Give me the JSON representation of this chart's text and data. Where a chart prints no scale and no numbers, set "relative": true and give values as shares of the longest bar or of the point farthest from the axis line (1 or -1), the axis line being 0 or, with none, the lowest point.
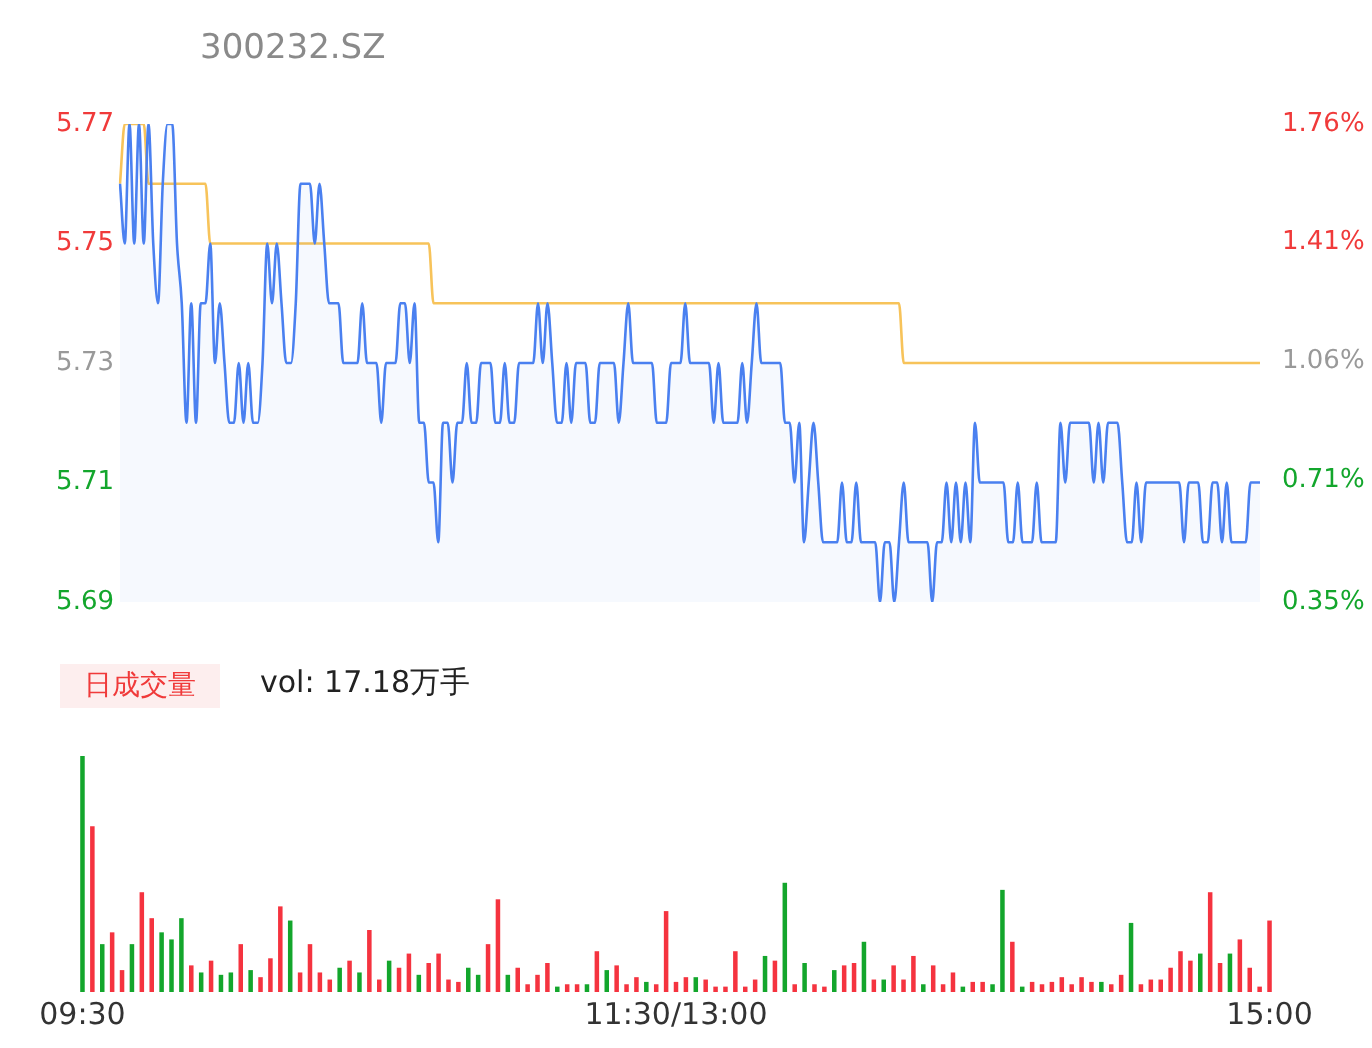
{
  "chart_data": [
    {
      "type": "line",
      "title": "300232.SZ",
      "categories": [
        null,
        null,
        null,
        null,
        null,
        null,
        null,
        null,
        null,
        null,
        null,
        null,
        null,
        null,
        null,
        null,
        null,
        null,
        null,
        null,
        null,
        null,
        null,
        null,
        null,
        null,
        null,
        null,
        null,
        null,
        null,
        null,
        null,
        null,
        null,
        null,
        null,
        null,
        null,
        null,
        null,
        null,
        null,
        null,
        null,
        null,
        null,
        null,
        null,
        null,
        null,
        null,
        null,
        null,
        null,
        null,
        null,
        null,
        null,
        null,
        null,
        null,
        null,
        null,
        null,
        null,
        null,
        null,
        null,
        null,
        null,
        null,
        null,
        null,
        null,
        null,
        null,
        null,
        null,
        null,
        null,
        null,
        null,
        null,
        null,
        null,
        null,
        null,
        null,
        null,
        null,
        null,
        null,
        null,
        null,
        null,
        null,
        null,
        null,
        null,
        null,
        null,
        null,
        null,
        null,
        null,
        null,
        null,
        null,
        null,
        null,
        null,
        null,
        null,
        null,
        null,
        null,
        null,
        null,
        null,
        null,
        null,
        null,
        null,
        null,
        null,
        null,
        null,
        null,
        null,
        null,
        null,
        null,
        null,
        null,
        null,
        null,
        null,
        null,
        null,
        null,
        null,
        null,
        null,
        null,
        null,
        null,
        null,
        null,
        null,
        null,
        null,
        null,
        null,
        null,
        null,
        null,
        null,
        null,
        null,
        null,
        null,
        null,
        null,
        null,
        null,
        null,
        null,
        null,
        null,
        null,
        null,
        null,
        null,
        null,
        null,
        null,
        null,
        null,
        null,
        null,
        null,
        null,
        null,
        null,
        null,
        null,
        null,
        null,
        null,
        null,
        null,
        null,
        null,
        null,
        null,
        null,
        null,
        null,
        null,
        null,
        null,
        null,
        null,
        null,
        null,
        null,
        null,
        null,
        null,
        null,
        null,
        null,
        null,
        null,
        null,
        null,
        null,
        null,
        null,
        null,
        null,
        null,
        null,
        null,
        null,
        null,
        null,
        null,
        null,
        null,
        null,
        null,
        null,
        null,
        null,
        null,
        null,
        null,
        null,
        null
      ],
      "ylim": [
        5.69,
        5.77
      ],
      "yticks": [
        5.69,
        5.71,
        5.73,
        5.75,
        5.77
      ],
      "y2lim": [
        0.35,
        1.76
      ],
      "y2ticks": [
        {
          "value": 0.35,
          "label": "0.35%"
        },
        {
          "value": 0.71,
          "label": "0.71%"
        },
        {
          "value": 1.06,
          "label": "1.06%"
        },
        {
          "value": 1.41,
          "label": "1.41%"
        },
        {
          "value": 1.76,
          "label": "1.76%"
        }
      ],
      "tick_labels": "y",
      "grid": false,
      "legend": false,
      "series": [
        {
          "type": "area",
          "color": "#4a80f0",
          "values": [
            5.76,
            5.75,
            5.77,
            5.75,
            5.77,
            5.75,
            5.77,
            5.75,
            5.74,
            5.76,
            5.77,
            5.77,
            5.75,
            5.74,
            5.72,
            5.74,
            5.72,
            5.74,
            5.74,
            5.75,
            5.73,
            5.74,
            5.73,
            5.72,
            5.72,
            5.73,
            5.72,
            5.73,
            5.72,
            5.72,
            5.73,
            5.75,
            5.74,
            5.75,
            5.74,
            5.73,
            5.73,
            5.74,
            5.76,
            5.76,
            5.76,
            5.75,
            5.76,
            5.75,
            5.74,
            5.74,
            5.74,
            5.73,
            5.73,
            5.73,
            5.73,
            5.74,
            5.73,
            5.73,
            5.73,
            5.72,
            5.73,
            5.73,
            5.73,
            5.74,
            5.74,
            5.73,
            5.74,
            5.72,
            5.72,
            5.71,
            5.71,
            5.7,
            5.72,
            5.72,
            5.71,
            5.72,
            5.72,
            5.73,
            5.72,
            5.72,
            5.73,
            5.73,
            5.73,
            5.72,
            5.72,
            5.73,
            5.72,
            5.72,
            5.73,
            5.73,
            5.73,
            5.73,
            5.74,
            5.73,
            5.74,
            5.73,
            5.72,
            5.72,
            5.73,
            5.72,
            5.73,
            5.73,
            5.73,
            5.72,
            5.72,
            5.73,
            5.73,
            5.73,
            5.73,
            5.72,
            5.73,
            5.74,
            5.73,
            5.73,
            5.73,
            5.73,
            5.73,
            5.72,
            5.72,
            5.72,
            5.73,
            5.73,
            5.73,
            5.74,
            5.73,
            5.73,
            5.73,
            5.73,
            5.73,
            5.72,
            5.73,
            5.72,
            5.72,
            5.72,
            5.72,
            5.73,
            5.72,
            5.73,
            5.74,
            5.73,
            5.73,
            5.73,
            5.73,
            5.73,
            5.72,
            5.72,
            5.71,
            5.72,
            5.7,
            5.71,
            5.72,
            5.71,
            5.7,
            5.7,
            5.7,
            5.7,
            5.71,
            5.7,
            5.7,
            5.71,
            5.7,
            5.7,
            5.7,
            5.7,
            5.69,
            5.7,
            5.7,
            5.69,
            5.7,
            5.71,
            5.7,
            5.7,
            5.7,
            5.7,
            5.7,
            5.69,
            5.7,
            5.7,
            5.71,
            5.7,
            5.71,
            5.7,
            5.71,
            5.7,
            5.72,
            5.71,
            5.71,
            5.71,
            5.71,
            5.71,
            5.71,
            5.7,
            5.7,
            5.71,
            5.7,
            5.7,
            5.7,
            5.71,
            5.7,
            5.7,
            5.7,
            5.7,
            5.72,
            5.71,
            5.72,
            5.72,
            5.72,
            5.72,
            5.72,
            5.71,
            5.72,
            5.71,
            5.72,
            5.72,
            5.72,
            5.71,
            5.7,
            5.7,
            5.71,
            5.7,
            5.71,
            5.71,
            5.71,
            5.71,
            5.71,
            5.71,
            5.71,
            5.71,
            5.7,
            5.71,
            5.71,
            5.71,
            5.7,
            5.7,
            5.71,
            5.71,
            5.7,
            5.71,
            5.7,
            5.7,
            5.7,
            5.7,
            5.71,
            5.71,
            5.71
          ]
        },
        {
          "type": "line",
          "color": "#f7c35a",
          "values": [
            5.76,
            5.77,
            5.77,
            5.77,
            5.77,
            5.77,
            5.76,
            5.76,
            5.76,
            5.76,
            5.76,
            5.76,
            5.76,
            5.76,
            5.76,
            5.76,
            5.76,
            5.76,
            5.76,
            5.75,
            5.75,
            5.75,
            5.75,
            5.75,
            5.75,
            5.75,
            5.75,
            5.75,
            5.75,
            5.75,
            5.75,
            5.75,
            5.75,
            5.75,
            5.75,
            5.75,
            5.75,
            5.75,
            5.75,
            5.75,
            5.75,
            5.75,
            5.75,
            5.75,
            5.75,
            5.75,
            5.75,
            5.75,
            5.75,
            5.75,
            5.75,
            5.75,
            5.75,
            5.75,
            5.75,
            5.75,
            5.75,
            5.75,
            5.75,
            5.75,
            5.75,
            5.75,
            5.75,
            5.75,
            5.75,
            5.75,
            5.74,
            5.74,
            5.74,
            5.74,
            5.74,
            5.74,
            5.74,
            5.74,
            5.74,
            5.74,
            5.74,
            5.74,
            5.74,
            5.74,
            5.74,
            5.74,
            5.74,
            5.74,
            5.74,
            5.74,
            5.74,
            5.74,
            5.74,
            5.74,
            5.74,
            5.74,
            5.74,
            5.74,
            5.74,
            5.74,
            5.74,
            5.74,
            5.74,
            5.74,
            5.74,
            5.74,
            5.74,
            5.74,
            5.74,
            5.74,
            5.74,
            5.74,
            5.74,
            5.74,
            5.74,
            5.74,
            5.74,
            5.74,
            5.74,
            5.74,
            5.74,
            5.74,
            5.74,
            5.74,
            5.74,
            5.74,
            5.74,
            5.74,
            5.74,
            5.74,
            5.74,
            5.74,
            5.74,
            5.74,
            5.74,
            5.74,
            5.74,
            5.74,
            5.74,
            5.74,
            5.74,
            5.74,
            5.74,
            5.74,
            5.74,
            5.74,
            5.74,
            5.74,
            5.74,
            5.74,
            5.74,
            5.74,
            5.74,
            5.74,
            5.74,
            5.74,
            5.74,
            5.74,
            5.74,
            5.74,
            5.74,
            5.74,
            5.74,
            5.74,
            5.74,
            5.74,
            5.74,
            5.74,
            5.74,
            5.73,
            5.73,
            5.73,
            5.73,
            5.73,
            5.73,
            5.73,
            5.73,
            5.73,
            5.73,
            5.73,
            5.73,
            5.73,
            5.73,
            5.73,
            5.73,
            5.73,
            5.73,
            5.73,
            5.73,
            5.73,
            5.73,
            5.73,
            5.73,
            5.73,
            5.73,
            5.73,
            5.73,
            5.73,
            5.73,
            5.73,
            5.73,
            5.73,
            5.73,
            5.73,
            5.73,
            5.73,
            5.73,
            5.73,
            5.73,
            5.73,
            5.73,
            5.73,
            5.73,
            5.73,
            5.73,
            5.73,
            5.73,
            5.73,
            5.73,
            5.73,
            5.73,
            5.73,
            5.73,
            5.73,
            5.73,
            5.73,
            5.73,
            5.73,
            5.73,
            5.73,
            5.73,
            5.73,
            5.73,
            5.73,
            5.73,
            5.73,
            5.73,
            5.73,
            5.73,
            5.73,
            5.73,
            5.73,
            5.73,
            5.73,
            5.73
          ]
        }
      ]
    },
    {
      "type": "bar",
      "relative": true,
      "annotations": [
        "日成交量",
        "vol: 17.18万手"
      ],
      "categories": [
        "09:30",
        null,
        null,
        null,
        null,
        null,
        null,
        null,
        null,
        null,
        null,
        null,
        null,
        null,
        null,
        null,
        null,
        null,
        null,
        null,
        null,
        null,
        null,
        null,
        null,
        null,
        null,
        null,
        null,
        null,
        null,
        null,
        null,
        null,
        null,
        null,
        null,
        null,
        null,
        null,
        null,
        null,
        null,
        null,
        null,
        null,
        null,
        null,
        null,
        null,
        null,
        null,
        null,
        null,
        null,
        null,
        null,
        null,
        null,
        null,
        null,
        null,
        null,
        null,
        null,
        null,
        null,
        null,
        null,
        null,
        null,
        null,
        null,
        null,
        null,
        null,
        null,
        null,
        null,
        null,
        null,
        null,
        null,
        null,
        null,
        null,
        null,
        null,
        null,
        null,
        null,
        null,
        null,
        null,
        null,
        null,
        null,
        null,
        null,
        null,
        null,
        null,
        null,
        null,
        null,
        null,
        null,
        null,
        null,
        null,
        null,
        null,
        null,
        null,
        null,
        null,
        null,
        null,
        null,
        null,
        "11:30/13:00",
        null,
        null,
        null,
        null,
        null,
        null,
        null,
        null,
        null,
        null,
        null,
        null,
        null,
        null,
        null,
        null,
        null,
        null,
        null,
        null,
        null,
        null,
        null,
        null,
        null,
        null,
        null,
        null,
        null,
        null,
        null,
        null,
        null,
        null,
        null,
        null,
        null,
        null,
        null,
        null,
        null,
        null,
        null,
        null,
        null,
        null,
        null,
        null,
        null,
        null,
        null,
        null,
        null,
        null,
        null,
        null,
        null,
        null,
        null,
        null,
        null,
        null,
        null,
        null,
        null,
        null,
        null,
        null,
        null,
        null,
        null,
        null,
        null,
        null,
        null,
        null,
        null,
        null,
        null,
        null,
        null,
        null,
        null,
        null,
        null,
        null,
        null,
        null,
        null,
        null,
        null,
        null,
        null,
        null,
        null,
        null,
        null,
        null,
        null,
        null,
        null,
        null,
        null,
        null,
        null,
        null,
        null,
        null,
        null,
        null,
        null,
        null,
        null,
        null,
        null,
        null,
        null,
        null,
        null,
        "15:00"
      ],
      "tick_labels": "x",
      "grid": false,
      "legend": false,
      "series": [
        {
          "color": "#f5333f",
          "values": [
            null,
            null,
            0.7,
            null,
            null,
            null,
            0.25,
            null,
            0.09,
            null,
            null,
            null,
            0.42,
            null,
            0.31,
            null,
            null,
            null,
            null,
            null,
            null,
            null,
            0.11,
            null,
            null,
            null,
            0.13,
            null,
            null,
            null,
            null,
            null,
            0.2,
            null,
            null,
            null,
            0.06,
            null,
            0.14,
            null,
            0.36,
            null,
            null,
            null,
            0.08,
            null,
            0.2,
            null,
            0.08,
            null,
            0.05,
            null,
            null,
            null,
            0.13,
            null,
            null,
            null,
            0.26,
            null,
            0.05,
            null,
            null,
            null,
            0.1,
            null,
            0.16,
            null,
            null,
            null,
            0.12,
            null,
            0.16,
            null,
            0.05,
            null,
            0.04,
            null,
            null,
            null,
            null,
            null,
            0.2,
            null,
            0.39,
            null,
            null,
            null,
            0.1,
            null,
            0.03,
            null,
            0.07,
            null,
            0.12,
            null,
            null,
            null,
            0.03,
            null,
            0.03,
            null,
            null,
            null,
            0.17,
            null,
            null,
            null,
            0.11,
            null,
            0.03,
            null,
            0.06,
            null,
            null,
            null,
            0.03,
            null,
            0.34,
            null,
            0.04,
            null,
            0.06,
            null,
            null,
            null,
            0.05,
            null,
            0.02,
            null,
            0.02,
            null,
            0.17,
            null,
            0.02,
            null,
            0.05,
            null,
            null,
            null,
            0.13,
            null,
            null,
            null,
            0.03,
            null,
            null,
            null,
            0.03,
            null,
            0.02,
            null,
            null,
            null,
            0.11,
            null,
            0.12,
            null,
            null,
            null,
            0.05,
            null,
            null,
            null,
            0.11,
            null,
            0.05,
            null,
            0.15,
            null,
            null,
            null,
            0.11,
            null,
            0.03,
            null,
            0.08,
            null,
            null,
            null,
            0.04,
            null,
            0.04,
            null,
            null,
            null,
            null,
            null,
            0.21,
            null,
            null,
            null,
            0.04,
            null,
            0.03,
            null,
            0.04,
            null,
            0.06,
            null,
            0.03,
            null,
            0.06,
            null,
            0.04,
            null,
            null,
            null,
            0.03,
            null,
            0.07,
            null,
            null,
            null,
            0.03,
            null,
            0.05,
            null,
            0.05,
            null,
            0.1,
            null,
            0.17,
            null,
            0.13,
            null,
            null,
            null,
            0.42,
            null,
            0.12,
            null,
            null,
            null,
            0.22,
            null,
            0.1,
            null,
            0.02,
            null,
            0.3
          ]
        },
        {
          "color": "#13a62c",
          "values": [
            1,
            null,
            null,
            null,
            0.2,
            null,
            null,
            null,
            null,
            null,
            0.2,
            null,
            null,
            null,
            null,
            null,
            0.25,
            null,
            0.22,
            null,
            0.31,
            null,
            null,
            null,
            0.08,
            null,
            null,
            null,
            0.07,
            null,
            0.08,
            null,
            null,
            null,
            0.09,
            null,
            null,
            null,
            null,
            null,
            null,
            null,
            0.3,
            null,
            null,
            null,
            null,
            null,
            null,
            null,
            null,
            null,
            0.1,
            null,
            null,
            null,
            0.08,
            null,
            null,
            null,
            null,
            null,
            0.13,
            null,
            null,
            null,
            null,
            null,
            0.07,
            null,
            null,
            null,
            null,
            null,
            null,
            null,
            null,
            null,
            0.1,
            null,
            0.07,
            null,
            null,
            null,
            null,
            null,
            0.07,
            null,
            null,
            null,
            null,
            null,
            null,
            null,
            null,
            null,
            0.02,
            null,
            null,
            null,
            null,
            null,
            0.03,
            null,
            null,
            null,
            0.09,
            null,
            null,
            null,
            null,
            null,
            null,
            null,
            0.04,
            null,
            null,
            null,
            null,
            null,
            null,
            null,
            null,
            null,
            0.06,
            null,
            null,
            null,
            null,
            null,
            null,
            null,
            null,
            null,
            null,
            null,
            null,
            null,
            0.15,
            null,
            null,
            null,
            0.46,
            null,
            null,
            null,
            0.12,
            null,
            null,
            null,
            null,
            null,
            0.09,
            null,
            null,
            null,
            null,
            null,
            0.21,
            null,
            null,
            null,
            0.05,
            null,
            null,
            null,
            null,
            null,
            null,
            null,
            0.03,
            null,
            null,
            null,
            null,
            null,
            null,
            null,
            0.02,
            null,
            null,
            null,
            null,
            null,
            0.03,
            null,
            0.43,
            null,
            null,
            null,
            0.02,
            null,
            null,
            null,
            null,
            null,
            null,
            null,
            null,
            null,
            null,
            null,
            null,
            null,
            null,
            null,
            0.04,
            null,
            null,
            null,
            null,
            null,
            0.29,
            null,
            null,
            null,
            null,
            null,
            null,
            null,
            null,
            null,
            null,
            null,
            null,
            null,
            0.16,
            null,
            null,
            null,
            null,
            null,
            0.16,
            null,
            null,
            null,
            null,
            null,
            null,
            null,
            null
          ]
        }
      ]
    }
  ]
}
